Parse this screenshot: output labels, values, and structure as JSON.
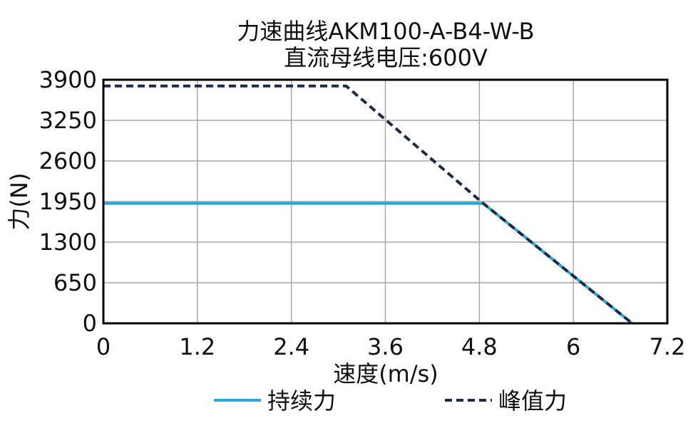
{
  "chart_data": {
    "type": "line",
    "title": "力速曲线AKM100-A-B4-W-B",
    "subtitle": "直流母线电压:600V",
    "xlabel": "速度(m/s)",
    "ylabel": "力(N)",
    "xlim": [
      0,
      7.2
    ],
    "ylim": [
      0,
      3900
    ],
    "xticks": [
      0,
      1.2,
      2.4,
      3.6,
      4.8,
      6,
      7.2
    ],
    "xtick_labels": [
      "0",
      "1.2",
      "2.4",
      "3.6",
      "4.8",
      "6",
      "7.2"
    ],
    "yticks": [
      0,
      650,
      1300,
      1950,
      2600,
      3250,
      3900
    ],
    "ytick_labels": [
      "0",
      "650",
      "1300",
      "1950",
      "2600",
      "3250",
      "3900"
    ],
    "grid": true,
    "legend_position": "bottom",
    "series": [
      {
        "name": "持续力",
        "style": "solid",
        "color": "#2AA7E0",
        "points": [
          [
            0,
            1920
          ],
          [
            4.8,
            1920
          ],
          [
            4.85,
            1920
          ],
          [
            6.75,
            0
          ]
        ]
      },
      {
        "name": "峰值力",
        "style": "dashed",
        "color": "#1C2B4A",
        "points": [
          [
            0,
            3800
          ],
          [
            3.1,
            3800
          ],
          [
            4.85,
            1920
          ],
          [
            6.75,
            0
          ]
        ]
      }
    ]
  }
}
